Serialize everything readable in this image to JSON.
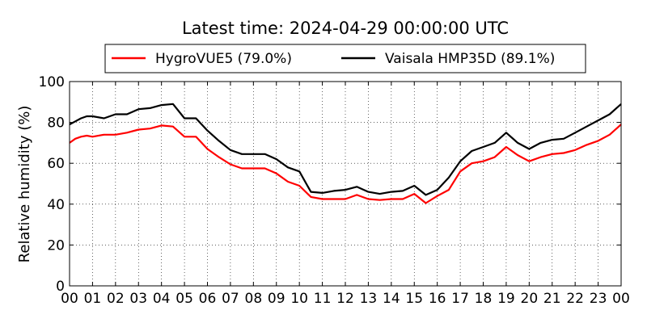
{
  "chart_data": {
    "type": "line",
    "title": "Latest time: 2024-04-29 00:00:00 UTC",
    "xlabel": "",
    "ylabel": "Relative humidity (%)",
    "xlim": [
      0,
      24
    ],
    "ylim": [
      0,
      100
    ],
    "x_ticks": [
      "00",
      "01",
      "02",
      "03",
      "04",
      "05",
      "06",
      "07",
      "08",
      "09",
      "10",
      "11",
      "12",
      "13",
      "14",
      "15",
      "16",
      "17",
      "18",
      "19",
      "20",
      "21",
      "22",
      "23",
      "00"
    ],
    "y_ticks": [
      0,
      20,
      40,
      60,
      80,
      100
    ],
    "grid": true,
    "legend_position": "top-center",
    "series": [
      {
        "name": "HygroVUE5 (79.0%)",
        "color": "#ff0000",
        "x": [
          0,
          0.25,
          0.5,
          0.75,
          1,
          1.5,
          2,
          2.5,
          3,
          3.5,
          4,
          4.5,
          5,
          5.5,
          6,
          6.5,
          7,
          7.5,
          8,
          8.5,
          9,
          9.5,
          10,
          10.5,
          11,
          11.5,
          12,
          12.5,
          13,
          13.5,
          14,
          14.5,
          15,
          15.5,
          16,
          16.5,
          17,
          17.5,
          18,
          18.5,
          19,
          19.5,
          20,
          20.5,
          21,
          21.5,
          22,
          22.5,
          23,
          23.5,
          24
        ],
        "values": [
          70,
          72,
          73,
          73.5,
          73,
          74,
          74,
          75,
          76.5,
          77,
          78.5,
          78,
          73,
          73,
          67,
          63,
          59.5,
          57.5,
          57.5,
          57.5,
          55,
          51,
          49,
          43.5,
          42.5,
          42.5,
          42.5,
          44.5,
          42.5,
          42,
          42.5,
          42.5,
          45,
          40.5,
          44,
          47,
          56,
          60,
          61,
          63,
          68,
          64,
          61,
          63,
          64.5,
          65,
          66.5,
          69,
          71,
          74,
          79
        ]
      },
      {
        "name": "Vaisala HMP35D (89.1%)",
        "color": "#000000",
        "x": [
          0,
          0.25,
          0.5,
          0.75,
          1,
          1.5,
          2,
          2.5,
          3,
          3.5,
          4,
          4.5,
          5,
          5.5,
          6,
          6.5,
          7,
          7.5,
          8,
          8.5,
          9,
          9.5,
          10,
          10.5,
          11,
          11.5,
          12,
          12.5,
          13,
          13.5,
          14,
          14.5,
          15,
          15.5,
          16,
          16.5,
          17,
          17.5,
          18,
          18.5,
          19,
          19.5,
          20,
          20.5,
          21,
          21.5,
          22,
          22.5,
          23,
          23.5,
          24
        ],
        "values": [
          79,
          80.5,
          82,
          83,
          83,
          82,
          84,
          84,
          86.5,
          87,
          88.5,
          89,
          82,
          82,
          76,
          71,
          66.5,
          64.5,
          64.5,
          64.5,
          62,
          58,
          56,
          46,
          45.5,
          46.5,
          47,
          48.5,
          46,
          45,
          46,
          46.5,
          49,
          44.5,
          47,
          53,
          61,
          66,
          68,
          70,
          75,
          70,
          67,
          70,
          71.5,
          72,
          75,
          78,
          81,
          84,
          89
        ]
      }
    ]
  }
}
